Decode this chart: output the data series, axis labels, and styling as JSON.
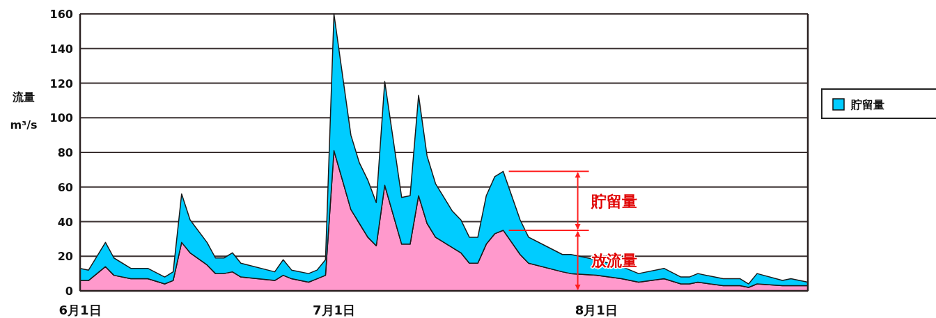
{
  "chart_data": {
    "type": "area",
    "stacked": true,
    "ylabel": "流量 m³/s",
    "x": [
      "--06-01",
      "--06-02",
      "--06-04",
      "--06-05",
      "--06-07",
      "--06-09",
      "--06-11",
      "--06-12",
      "--06-13",
      "--06-14",
      "--06-16",
      "--06-17",
      "--06-18",
      "--06-19",
      "--06-20",
      "--06-24",
      "--06-25",
      "--06-26",
      "--06-28",
      "--06-29",
      "--06-30",
      "--07-01",
      "--07-03",
      "--07-04",
      "--07-05",
      "--07-06",
      "--07-07",
      "--07-09",
      "--07-10",
      "--07-11",
      "--07-12",
      "--07-13",
      "--07-15",
      "--07-16",
      "--07-17",
      "--07-18",
      "--07-19",
      "--07-20",
      "--07-21",
      "--07-23",
      "--07-24",
      "--07-28",
      "--07-29",
      "--08-01",
      "--08-04",
      "--08-06",
      "--08-09",
      "--08-11",
      "--08-12",
      "--08-13",
      "--08-16",
      "--08-18",
      "--08-19",
      "--08-20",
      "--08-23",
      "--08-24",
      "--08-26"
    ],
    "series": [
      {
        "color": "#ff99cc",
        "values": [
          6,
          6,
          14,
          9,
          7,
          7,
          4,
          6,
          28,
          22,
          15,
          10,
          10,
          11,
          8,
          6,
          9,
          7,
          5,
          7,
          9,
          81,
          47,
          39,
          31,
          26,
          61,
          27,
          27,
          55,
          39,
          31,
          25,
          22,
          16,
          16,
          27,
          33,
          35,
          21,
          16,
          11,
          10,
          9,
          7,
          5,
          7,
          4,
          4,
          5,
          3,
          3,
          2,
          4,
          3,
          3,
          3
        ]
      },
      {
        "name": "貯留量",
        "color": "#00ccff",
        "values": [
          7,
          6,
          14,
          10,
          6,
          6,
          4,
          5,
          28,
          19,
          13,
          9,
          9,
          11,
          8,
          5,
          9,
          5,
          5,
          5,
          9,
          79,
          43,
          35,
          33,
          25,
          60,
          27,
          28,
          58,
          39,
          31,
          21,
          19,
          15,
          15,
          28,
          33,
          34,
          20,
          15,
          10,
          11,
          9,
          7,
          5,
          6,
          4,
          4,
          5,
          4,
          4,
          2,
          6,
          3,
          4,
          2
        ]
      }
    ],
    "xlim": [
      "--06-01",
      "--08-26"
    ],
    "xticks": [
      {
        "value": "--06-01",
        "label": "6月1日"
      },
      {
        "value": "--07-01",
        "label": "7月1日"
      },
      {
        "value": "--08-01",
        "label": "8月1日"
      }
    ],
    "ylim": [
      0,
      160
    ],
    "yticks": [
      0,
      20,
      40,
      60,
      80,
      100,
      120,
      140,
      160
    ],
    "grid": "y",
    "legend": "right",
    "annotations": [
      "放流量",
      "貯留量"
    ]
  }
}
